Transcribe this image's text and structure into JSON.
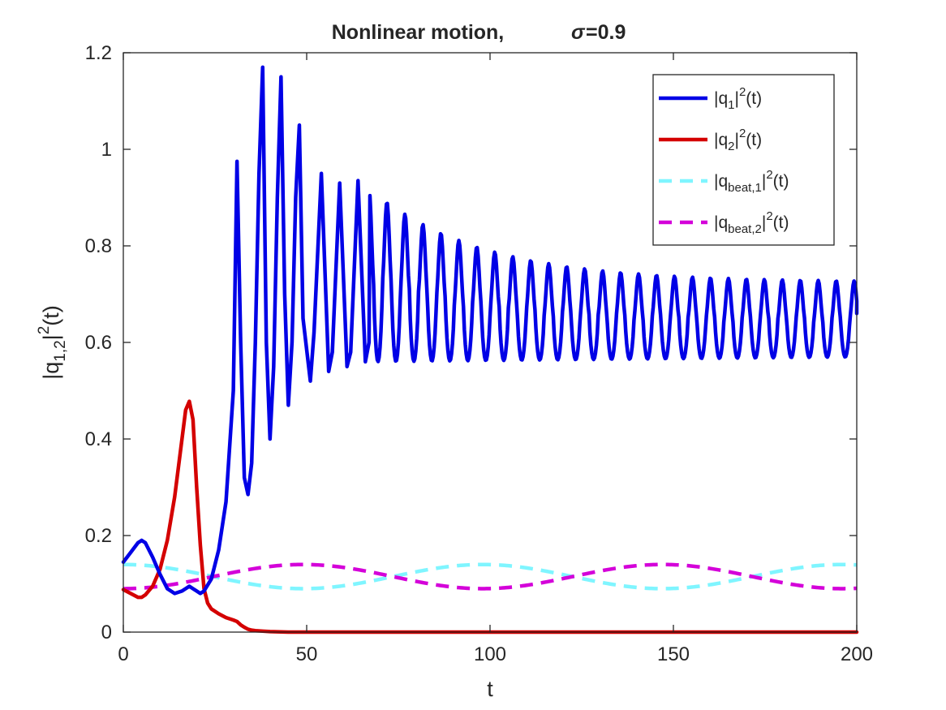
{
  "chart_data": {
    "type": "line",
    "title": "Nonlinear motion,",
    "title_symbol": "σ",
    "title_value": "=0.9",
    "xlabel": "t",
    "ylabel": {
      "prefix": "|q",
      "sub": "1,2",
      "mid": "|",
      "sup": "2",
      "suffix": "(t)"
    },
    "xlim": [
      0,
      200
    ],
    "ylim": [
      0,
      1.2
    ],
    "xticks": [
      {
        "value": 0,
        "label": "0"
      },
      {
        "value": 50,
        "label": "50"
      },
      {
        "value": 100,
        "label": "100"
      },
      {
        "value": 150,
        "label": "150"
      },
      {
        "value": 200,
        "label": "200"
      }
    ],
    "yticks": [
      {
        "value": 0,
        "label": "0"
      },
      {
        "value": 0.2,
        "label": "0.2"
      },
      {
        "value": 0.4,
        "label": "0.4"
      },
      {
        "value": 0.6,
        "label": "0.6"
      },
      {
        "value": 0.8,
        "label": "0.8"
      },
      {
        "value": 1.0,
        "label": "1"
      },
      {
        "value": 1.2,
        "label": "1.2"
      }
    ],
    "grid": false,
    "legend_position": "top-right",
    "series": [
      {
        "name": "|q1|^2(t)",
        "legend": {
          "prefix": "|q",
          "sub": "1",
          "mid": "|",
          "sup": "2",
          "suffix": "(t)"
        },
        "color": "#0000e6",
        "style": "solid",
        "x": [
          0,
          2,
          4,
          5,
          6,
          8,
          10,
          12,
          14,
          16,
          18,
          19,
          20,
          21,
          22,
          24,
          26,
          28,
          30,
          31,
          32,
          33,
          34,
          35,
          36,
          37,
          38,
          39,
          40,
          41,
          42,
          43,
          44,
          45,
          46,
          47,
          48,
          49,
          51,
          52,
          54,
          56,
          57,
          59,
          61,
          62,
          64,
          66,
          67
        ],
        "y": [
          0.145,
          0.165,
          0.185,
          0.19,
          0.185,
          0.155,
          0.12,
          0.09,
          0.08,
          0.085,
          0.095,
          0.09,
          0.085,
          0.08,
          0.085,
          0.11,
          0.17,
          0.27,
          0.5,
          0.975,
          0.6,
          0.32,
          0.285,
          0.35,
          0.6,
          0.95,
          1.17,
          0.6,
          0.4,
          0.55,
          0.9,
          1.15,
          0.7,
          0.47,
          0.6,
          0.9,
          1.05,
          0.65,
          0.52,
          0.62,
          0.95,
          0.54,
          0.58,
          0.93,
          0.55,
          0.58,
          0.935,
          0.56,
          0.6
        ],
        "osc_tail": {
          "t_start": 67,
          "t_end": 200,
          "period": 4.9,
          "start_max": 0.92,
          "end_max": 0.725,
          "start_min": 0.56,
          "end_min": 0.57,
          "decay": 30,
          "end_value": 0.66
        }
      },
      {
        "name": "|q2|^2(t)",
        "legend": {
          "prefix": "|q",
          "sub": "2",
          "mid": "|",
          "sup": "2",
          "suffix": "(t)"
        },
        "color": "#d40000",
        "style": "solid",
        "x": [
          0,
          2,
          4,
          5,
          6,
          8,
          10,
          12,
          14,
          16,
          17,
          18,
          19,
          20,
          21,
          22,
          23,
          24,
          26,
          28,
          30,
          31,
          32,
          33,
          34,
          35,
          36,
          38,
          40,
          45,
          50,
          100,
          150,
          200
        ],
        "y": [
          0.088,
          0.08,
          0.072,
          0.072,
          0.077,
          0.095,
          0.13,
          0.19,
          0.28,
          0.4,
          0.46,
          0.478,
          0.44,
          0.3,
          0.18,
          0.09,
          0.06,
          0.048,
          0.038,
          0.03,
          0.025,
          0.022,
          0.015,
          0.01,
          0.006,
          0.004,
          0.003,
          0.002,
          0.001,
          0.0,
          0.0,
          0.0,
          0.0,
          0.0
        ]
      },
      {
        "name": "|q_beat,1|^2(t)",
        "legend": {
          "prefix": "|q",
          "sub": "beat,1",
          "mid": "|",
          "sup": "2",
          "suffix": "(t)"
        },
        "color": "#7ff5ff",
        "style": "dashed",
        "formula": {
          "center": 0.115,
          "amp": 0.025,
          "period": 98,
          "phase_value": "cos"
        }
      },
      {
        "name": "|q_beat,2|^2(t)",
        "legend": {
          "prefix": "|q",
          "sub": "beat,2",
          "mid": "|",
          "sup": "2",
          "suffix": "(t)"
        },
        "color": "#d400d9",
        "style": "dashed",
        "formula": {
          "center": 0.115,
          "amp": -0.025,
          "period": 98,
          "phase_value": "cos"
        }
      }
    ]
  }
}
